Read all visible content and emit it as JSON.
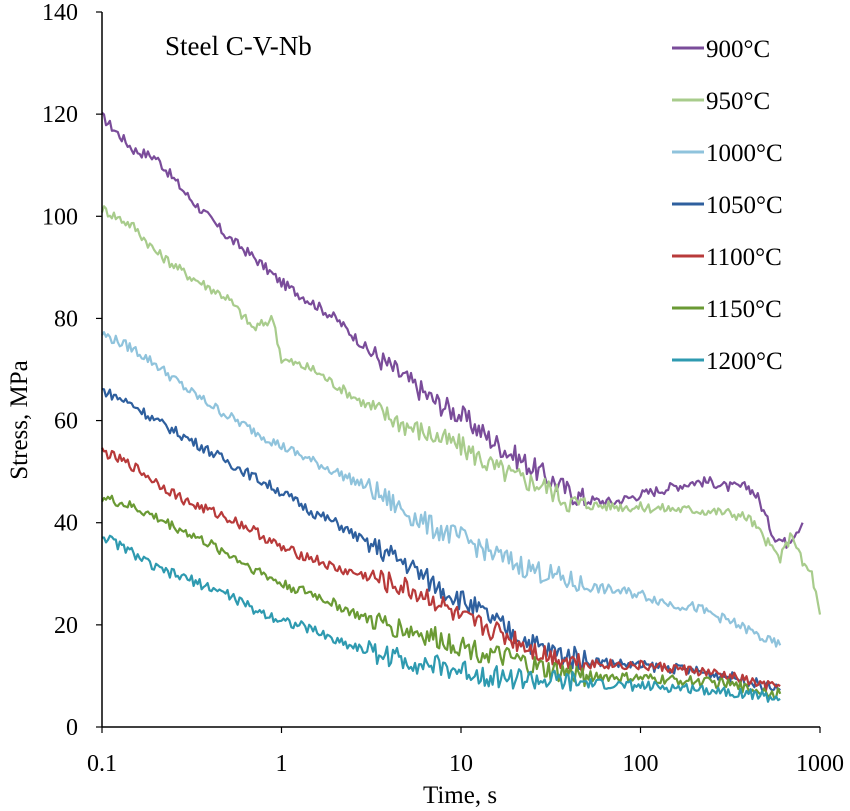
{
  "chart_data": {
    "type": "line",
    "title": "Steel C-V-Nb",
    "xlabel": "Time, s",
    "ylabel": "Stress, MPa",
    "xscale": "log",
    "xlim": [
      0.1,
      1000
    ],
    "ylim": [
      0,
      140
    ],
    "xticks": [
      "0.1",
      "1",
      "10",
      "100",
      "1000"
    ],
    "yticks": [
      "0",
      "20",
      "40",
      "60",
      "80",
      "100",
      "120",
      "140"
    ],
    "grid": false,
    "legend_position": "top-right",
    "series": [
      {
        "name": "900°C",
        "color": "#7a4c9a",
        "points": [
          [
            0.1,
            119.5
          ],
          [
            0.15,
            113
          ],
          [
            0.2,
            111.5
          ],
          [
            0.3,
            104
          ],
          [
            0.5,
            96
          ],
          [
            0.7,
            92
          ],
          [
            1.0,
            87
          ],
          [
            1.5,
            83
          ],
          [
            2,
            80
          ],
          [
            3,
            74
          ],
          [
            5,
            68
          ],
          [
            7,
            64
          ],
          [
            10,
            61
          ],
          [
            15,
            56
          ],
          [
            20,
            53
          ],
          [
            30,
            49
          ],
          [
            40,
            46
          ],
          [
            50,
            44.5
          ],
          [
            70,
            44
          ],
          [
            100,
            45.5
          ],
          [
            150,
            47
          ],
          [
            200,
            48
          ],
          [
            250,
            48
          ],
          [
            300,
            47
          ],
          [
            400,
            47
          ],
          [
            450,
            45
          ],
          [
            550,
            37.5
          ],
          [
            650,
            36
          ],
          [
            800,
            40
          ]
        ]
      },
      {
        "name": "950°C",
        "color": "#a8cc8c",
        "points": [
          [
            0.1,
            101.5
          ],
          [
            0.15,
            98
          ],
          [
            0.2,
            93
          ],
          [
            0.3,
            88.5
          ],
          [
            0.5,
            84
          ],
          [
            0.7,
            78
          ],
          [
            0.9,
            80
          ],
          [
            1.0,
            72
          ],
          [
            1.5,
            70
          ],
          [
            2,
            67
          ],
          [
            3,
            63
          ],
          [
            5,
            59
          ],
          [
            7,
            57
          ],
          [
            10,
            55
          ],
          [
            15,
            51
          ],
          [
            20,
            49
          ],
          [
            30,
            47
          ],
          [
            40,
            44
          ],
          [
            50,
            43.5
          ],
          [
            100,
            43
          ],
          [
            200,
            42.5
          ],
          [
            300,
            42
          ],
          [
            400,
            41
          ],
          [
            500,
            36.5
          ],
          [
            600,
            33
          ],
          [
            700,
            38
          ],
          [
            800,
            32
          ],
          [
            900,
            30
          ],
          [
            1000,
            22
          ]
        ]
      },
      {
        "name": "1000°C",
        "color": "#8fc3dc",
        "points": [
          [
            0.1,
            77
          ],
          [
            0.15,
            74
          ],
          [
            0.2,
            71
          ],
          [
            0.3,
            66
          ],
          [
            0.5,
            61
          ],
          [
            0.7,
            58
          ],
          [
            1.0,
            55
          ],
          [
            1.5,
            52
          ],
          [
            2,
            50
          ],
          [
            3,
            47
          ],
          [
            5,
            42
          ],
          [
            7,
            39
          ],
          [
            10,
            37
          ],
          [
            15,
            34
          ],
          [
            20,
            32
          ],
          [
            30,
            30
          ],
          [
            40,
            28.5
          ],
          [
            50,
            27.5
          ],
          [
            100,
            26
          ],
          [
            150,
            24
          ],
          [
            200,
            23.5
          ],
          [
            300,
            21
          ],
          [
            400,
            19
          ],
          [
            500,
            17
          ],
          [
            600,
            16
          ]
        ]
      },
      {
        "name": "1050°C",
        "color": "#2e5f9e",
        "points": [
          [
            0.1,
            66
          ],
          [
            0.15,
            63
          ],
          [
            0.2,
            60
          ],
          [
            0.3,
            56.5
          ],
          [
            0.5,
            52
          ],
          [
            0.7,
            49
          ],
          [
            1.0,
            46
          ],
          [
            1.5,
            42
          ],
          [
            2,
            40
          ],
          [
            3,
            36
          ],
          [
            5,
            32
          ],
          [
            7,
            28
          ],
          [
            10,
            25
          ],
          [
            15,
            21
          ],
          [
            20,
            18
          ],
          [
            30,
            15
          ],
          [
            50,
            13
          ],
          [
            100,
            12
          ],
          [
            150,
            11.5
          ],
          [
            200,
            11
          ],
          [
            300,
            10
          ],
          [
            400,
            9
          ],
          [
            500,
            8
          ],
          [
            600,
            7.5
          ]
        ]
      },
      {
        "name": "1100°C",
        "color": "#b83a3a",
        "points": [
          [
            0.1,
            54
          ],
          [
            0.15,
            51
          ],
          [
            0.2,
            48
          ],
          [
            0.3,
            44
          ],
          [
            0.5,
            41
          ],
          [
            0.7,
            38.5
          ],
          [
            1.0,
            35
          ],
          [
            1.5,
            33
          ],
          [
            2,
            31
          ],
          [
            3,
            29.5
          ],
          [
            5,
            27
          ],
          [
            7,
            25
          ],
          [
            10,
            21
          ],
          [
            15,
            19
          ],
          [
            20,
            17
          ],
          [
            30,
            14
          ],
          [
            50,
            12.5
          ],
          [
            100,
            12
          ],
          [
            150,
            11.5
          ],
          [
            200,
            11
          ],
          [
            300,
            10
          ],
          [
            400,
            9
          ],
          [
            500,
            8
          ],
          [
            600,
            8
          ]
        ]
      },
      {
        "name": "1150°C",
        "color": "#6a9a34",
        "points": [
          [
            0.1,
            45
          ],
          [
            0.15,
            43
          ],
          [
            0.2,
            41
          ],
          [
            0.3,
            38
          ],
          [
            0.5,
            34
          ],
          [
            0.7,
            31
          ],
          [
            1.0,
            28
          ],
          [
            1.5,
            26
          ],
          [
            2,
            24
          ],
          [
            3,
            21
          ],
          [
            5,
            19
          ],
          [
            7,
            17.5
          ],
          [
            10,
            16
          ],
          [
            15,
            14
          ],
          [
            20,
            13
          ],
          [
            30,
            11
          ],
          [
            50,
            10
          ],
          [
            100,
            9.5
          ],
          [
            200,
            9
          ],
          [
            300,
            8.5
          ],
          [
            400,
            7.5
          ],
          [
            500,
            7
          ],
          [
            600,
            6.5
          ]
        ]
      },
      {
        "name": "1200°C",
        "color": "#2e9ab0",
        "points": [
          [
            0.1,
            37.5
          ],
          [
            0.15,
            34
          ],
          [
            0.2,
            31
          ],
          [
            0.3,
            29
          ],
          [
            0.5,
            26
          ],
          [
            0.7,
            23
          ],
          [
            1.0,
            21
          ],
          [
            1.5,
            19
          ],
          [
            2,
            17
          ],
          [
            3,
            15
          ],
          [
            5,
            13
          ],
          [
            7,
            12
          ],
          [
            10,
            11
          ],
          [
            15,
            10
          ],
          [
            20,
            9.5
          ],
          [
            30,
            9
          ],
          [
            50,
            8.5
          ],
          [
            100,
            8
          ],
          [
            200,
            7.5
          ],
          [
            300,
            7
          ],
          [
            400,
            6.5
          ],
          [
            500,
            6
          ],
          [
            600,
            5.5
          ]
        ]
      }
    ]
  }
}
